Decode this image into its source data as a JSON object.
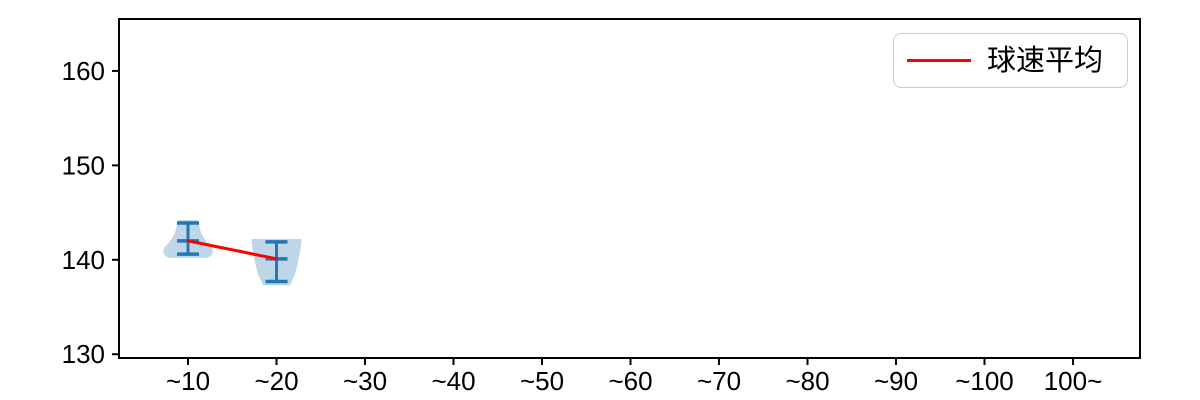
{
  "figure": {
    "background": "#ffffff"
  },
  "chart_data": {
    "type": "violin",
    "title": "",
    "xlabel": "",
    "ylabel": "",
    "categories": [
      "~10",
      "~20",
      "~30",
      "~40",
      "~50",
      "~60",
      "~70",
      "~80",
      "~90",
      "~100",
      "100~"
    ],
    "yticks": [
      130,
      140,
      150,
      160
    ],
    "ylim": [
      129.6,
      165.5
    ],
    "grid": false,
    "legend": {
      "label": "球速平均",
      "position": "upper right",
      "line_color": "#ff0000"
    },
    "series": [
      {
        "name": "球速平均",
        "type": "line",
        "color": "#ff0000",
        "x": [
          "~10",
          "~20"
        ],
        "values": [
          142.0,
          140.1
        ]
      }
    ],
    "groups": [
      {
        "category": "~10",
        "index": 0,
        "mean": 142.0,
        "max": 143.9,
        "min": 140.6,
        "violin_profile": [
          [
            144.2,
            0.4
          ],
          [
            143.6,
            0.44
          ],
          [
            142.7,
            0.54
          ],
          [
            141.9,
            0.74
          ],
          [
            141.3,
            0.94
          ],
          [
            140.9,
            1.0
          ],
          [
            140.5,
            0.94
          ],
          [
            140.2,
            0.8
          ]
        ]
      },
      {
        "category": "~20",
        "index": 1,
        "mean": 140.1,
        "max": 141.9,
        "min": 137.7,
        "violin_profile": [
          [
            142.2,
            1.0
          ],
          [
            141.5,
            0.98
          ],
          [
            140.5,
            0.92
          ],
          [
            139.5,
            0.84
          ],
          [
            138.5,
            0.74
          ],
          [
            137.8,
            0.62
          ],
          [
            137.3,
            0.54
          ]
        ]
      }
    ],
    "colors": {
      "violin_fill": "#bdd7e9",
      "errorbar": "#2377b4",
      "mean_line": "#ff0000",
      "axis": "#000000"
    }
  }
}
